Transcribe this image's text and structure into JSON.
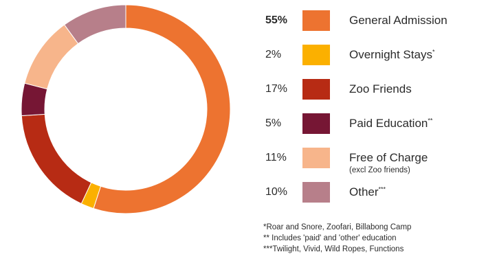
{
  "chart_data": {
    "type": "pie",
    "style": "donut",
    "start": "top",
    "direction": "clockwise",
    "slices": [
      {
        "pct_label": "55%",
        "value": 55,
        "label": "General Admission",
        "marker": "",
        "sublabel": "",
        "color": "#ed7330",
        "bold": true
      },
      {
        "pct_label": "2%",
        "value": 2,
        "label": "Overnight Stays",
        "marker": "*",
        "sublabel": "",
        "color": "#fbb000",
        "bold": false
      },
      {
        "pct_label": "17%",
        "value": 17,
        "label": "Zoo Friends",
        "marker": "",
        "sublabel": "",
        "color": "#b72b14",
        "bold": false
      },
      {
        "pct_label": "5%",
        "value": 5,
        "label": "Paid Education",
        "marker": "**",
        "sublabel": "",
        "color": "#761634",
        "bold": false
      },
      {
        "pct_label": "11%",
        "value": 11,
        "label": "Free of Charge",
        "marker": "",
        "sublabel": "(excl Zoo friends)",
        "color": "#f7b58b",
        "bold": false
      },
      {
        "pct_label": "10%",
        "value": 10,
        "label": "Other",
        "marker": "***",
        "sublabel": "",
        "color": "#b77f8a",
        "bold": false
      }
    ],
    "footnotes": [
      "*Roar and Snore, Zoofari, Billabong Camp",
      "** Includes 'paid' and 'other' education",
      "***Twilight, Vivid, Wild Ropes, Functions"
    ]
  }
}
